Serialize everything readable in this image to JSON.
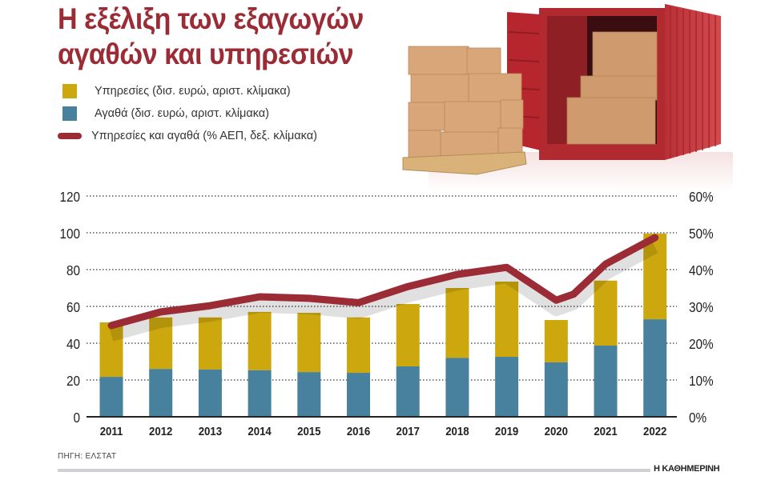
{
  "title": {
    "line1": "Η εξέλιξη των εξαγωγών",
    "line2": "αγαθών και υπηρεσιών"
  },
  "legend": [
    {
      "label": "Υπηρεσίες (δισ. ευρώ, αριστ. κλίμακα)",
      "color": "#cca70e",
      "kind": "box"
    },
    {
      "label": "Αγαθά (δισ. ευρώ, αριστ. κλίμακα)",
      "color": "#47819d",
      "kind": "box"
    },
    {
      "label": "Υπηρεσίες και αγαθά (% ΑΕΠ, δεξ. κλίμακα)",
      "color": "#9b2b35",
      "kind": "line"
    }
  ],
  "source": "ΠΗΓΗ: ΕΛΣΤΑΤ",
  "brand": "Η ΚΑΘΗΜΕΡΙΝΗ",
  "colors": {
    "services": "#cca70e",
    "goods": "#47819d",
    "line": "#9b2b35",
    "title": "#9b2b35"
  },
  "chart_data": {
    "type": "bar",
    "stacked": true,
    "title": "Η εξέλιξη των εξαγωγών αγαθών και υπηρεσιών",
    "categories": [
      "2011",
      "2012",
      "2013",
      "2014",
      "2015",
      "2016",
      "2017",
      "2018",
      "2019",
      "2020",
      "2021",
      "2022"
    ],
    "series": [
      {
        "name": "Αγαθά (δισ. ευρώ, αριστ. κλίμακα)",
        "type": "bar",
        "axis": "left",
        "values": [
          21.7,
          26.0,
          25.7,
          25.3,
          24.3,
          23.9,
          27.4,
          32.0,
          32.6,
          29.6,
          38.7,
          53.0
        ]
      },
      {
        "name": "Υπηρεσίες (δισ. ευρώ, αριστ. κλίμακα)",
        "type": "bar",
        "axis": "left",
        "values": [
          29.6,
          28.0,
          28.3,
          31.7,
          32.2,
          30.1,
          33.9,
          38.0,
          40.9,
          23.0,
          35.3,
          46.6
        ]
      },
      {
        "name": "Υπηρεσίες και αγαθά (% ΑΕΠ, δεξ. κλίμακα)",
        "type": "line",
        "axis": "right",
        "values": [
          24.8,
          28.5,
          30.2,
          32.6,
          32.2,
          31.0,
          35.4,
          38.7,
          40.6,
          31.7,
          41.5,
          48.7
        ]
      }
    ],
    "totals": [
      51.3,
      54.0,
      54.0,
      57.0,
      56.5,
      54.0,
      61.3,
      70.0,
      73.5,
      52.6,
      74.0,
      99.6
    ],
    "left_axis": {
      "ticks": [
        "0",
        "20",
        "40",
        "60",
        "80",
        "100",
        "120"
      ],
      "ylim": [
        0,
        120
      ]
    },
    "right_axis": {
      "ticks": [
        "0%",
        "10%",
        "20%",
        "30%",
        "40%",
        "50%",
        "60%"
      ],
      "ylim": [
        0,
        60
      ]
    },
    "xlabel": "",
    "ylabel": "",
    "grid": true,
    "legend_position": "top-left"
  }
}
